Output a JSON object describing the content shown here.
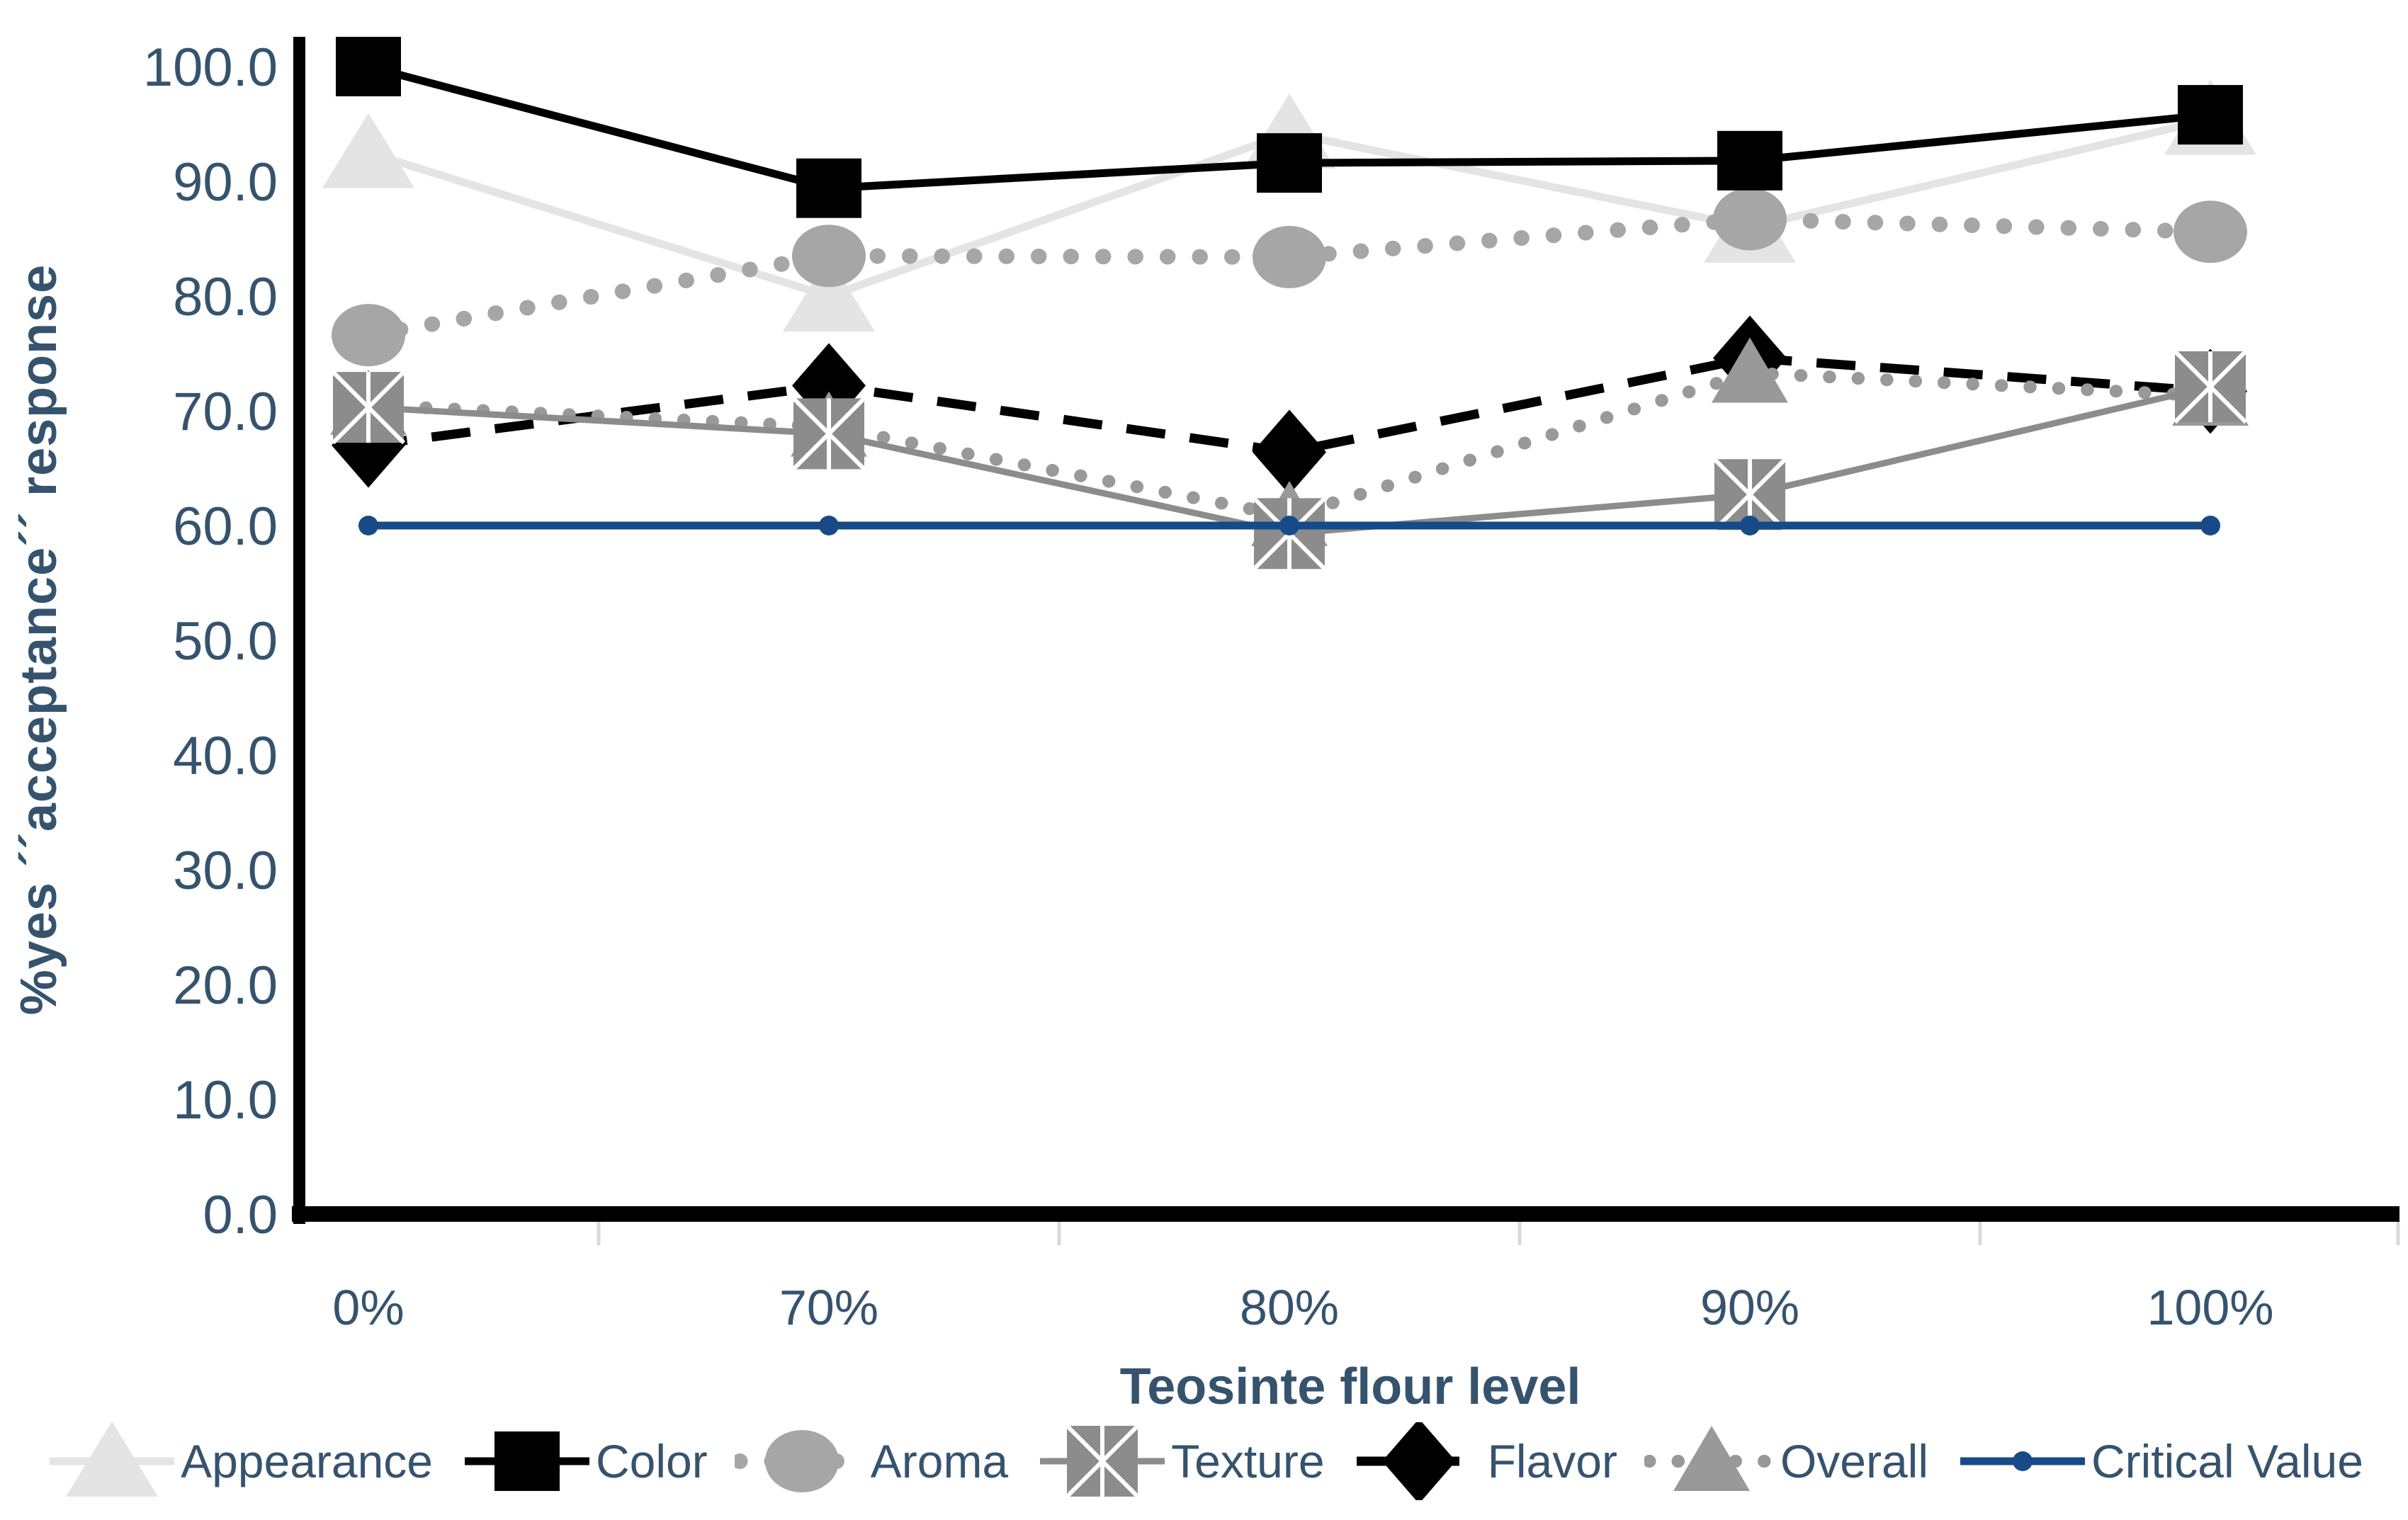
{
  "chart_data": {
    "type": "line",
    "title": "",
    "xlabel": "Teosinte flour level",
    "ylabel": "%yes ´´acceptance´´ response",
    "x_categories": [
      "0%",
      "70%",
      "80%",
      "90%",
      "100%"
    ],
    "ylim": [
      0,
      100
    ],
    "ytick_step": 10,
    "ytick_labels": [
      "0.0",
      "10.0",
      "20.0",
      "30.0",
      "40.0",
      "50.0",
      "60.0",
      "70.0",
      "80.0",
      "90.0",
      "100.0"
    ],
    "grid": false,
    "legend_position": "bottom",
    "axis_color": "#000000",
    "tick_label_color": "#36536e",
    "series": [
      {
        "name": "Appearance",
        "color": "#e4e4e4",
        "marker": "triangle",
        "line": "solid",
        "values": [
          92.5,
          80.0,
          94.2,
          86.0,
          95.4
        ]
      },
      {
        "name": "Color",
        "color": "#000000",
        "marker": "square",
        "line": "solid",
        "values": [
          100.0,
          89.4,
          91.6,
          91.8,
          95.8
        ]
      },
      {
        "name": "Aroma",
        "color": "#a6a6a6",
        "marker": "circle",
        "line": "dotted",
        "values": [
          76.6,
          83.5,
          83.4,
          86.7,
          85.6
        ]
      },
      {
        "name": "Texture",
        "color": "#8c8c8c",
        "marker": "x-square",
        "line": "solid",
        "values": [
          70.3,
          68.0,
          59.3,
          62.7,
          72.1
        ]
      },
      {
        "name": "Flavor",
        "color": "#000000",
        "marker": "diamond",
        "line": "dashed",
        "values": [
          67.0,
          72.2,
          66.4,
          74.6,
          71.7
        ]
      },
      {
        "name": "Overall",
        "color": "#999999",
        "marker": "triangle-small",
        "line": "dotted-small",
        "values": [
          70.5,
          68.6,
          60.8,
          73.3,
          71.3
        ]
      },
      {
        "name": "Critical Value",
        "color": "#174a87",
        "marker": "dot",
        "line": "solid",
        "values": [
          60.0,
          60.0,
          60.0,
          60.0,
          60.0
        ]
      }
    ]
  }
}
